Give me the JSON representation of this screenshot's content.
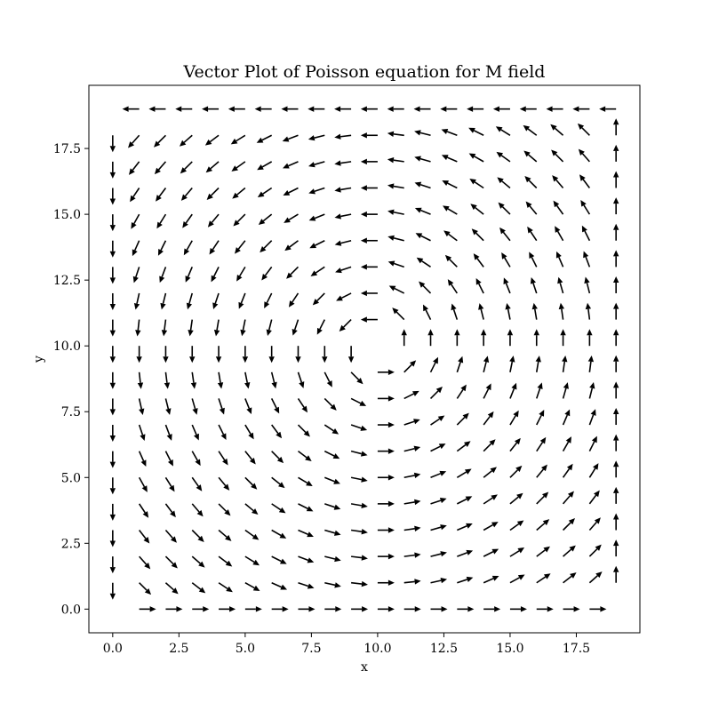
{
  "chart_data": {
    "type": "quiver",
    "title": "Vector Plot of Poisson equation for M field",
    "xlabel": "x",
    "ylabel": "y",
    "xlim": [
      -0.9,
      19.9
    ],
    "ylim": [
      -0.9,
      19.9
    ],
    "xticks": [
      0.0,
      2.5,
      5.0,
      7.5,
      10.0,
      12.5,
      15.0,
      17.5
    ],
    "xtick_labels": [
      "0.0",
      "2.5",
      "5.0",
      "7.5",
      "10.0",
      "12.5",
      "15.0",
      "17.5"
    ],
    "yticks": [
      0.0,
      2.5,
      5.0,
      7.5,
      10.0,
      12.5,
      15.0,
      17.5
    ],
    "ytick_labels": [
      "0.0",
      "2.5",
      "5.0",
      "7.5",
      "10.0",
      "12.5",
      "15.0",
      "17.5"
    ],
    "grid": false,
    "legend": false,
    "arrow_color": "#000000",
    "grid_points": {
      "x_start": 0,
      "x_end": 19,
      "y_start": 0,
      "y_end": 19,
      "step": 1
    },
    "field": {
      "description": "normalized direction field circulating counter-clockwise around the domain center",
      "center": [
        10,
        10
      ]
    }
  }
}
